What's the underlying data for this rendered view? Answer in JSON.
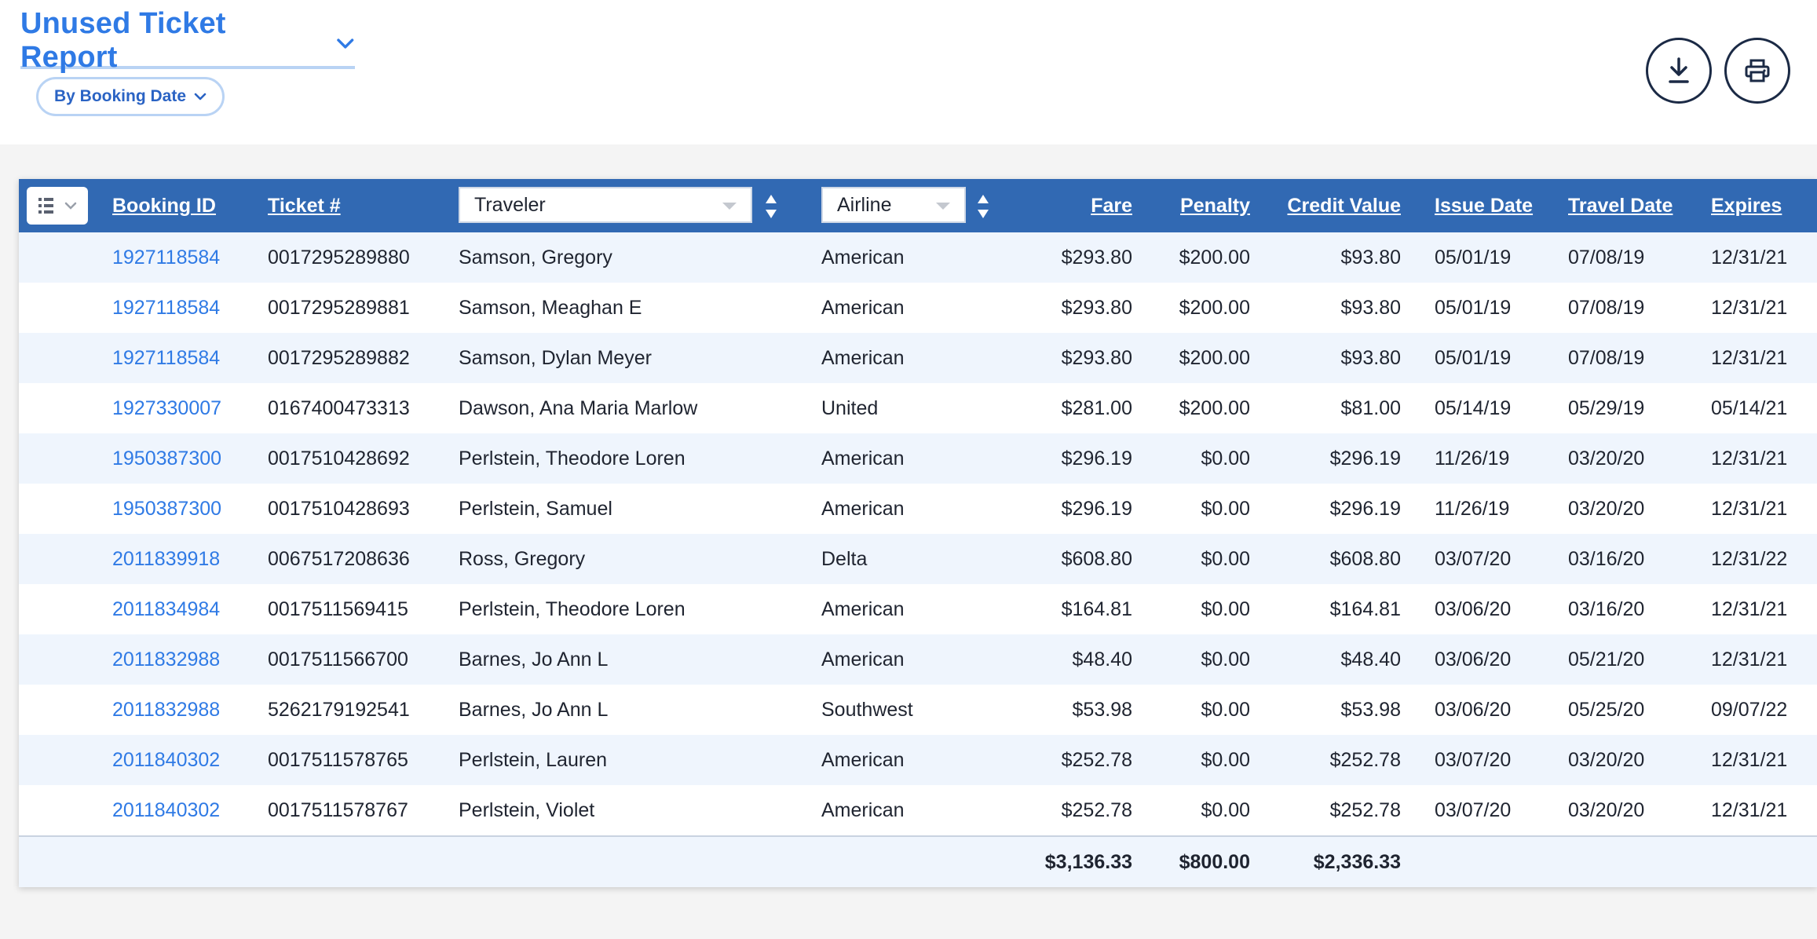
{
  "header": {
    "title": "Unused Ticket Report",
    "filter_label": "By Booking Date",
    "actions": [
      {
        "name": "download-button",
        "icon": "download-icon"
      },
      {
        "name": "print-button",
        "icon": "print-icon"
      }
    ]
  },
  "table": {
    "columns": {
      "booking_id": "Booking ID",
      "ticket": "Ticket #",
      "traveler": "Traveler",
      "airline": "Airline",
      "fare": "Fare",
      "penalty": "Penalty",
      "credit_value": "Credit Value",
      "issue_date": "Issue Date",
      "travel_date": "Travel Date",
      "expires": "Expires"
    },
    "rows": [
      {
        "booking_id": "1927118584",
        "ticket": "0017295289880",
        "traveler": "Samson, Gregory",
        "airline": "American",
        "fare": "$293.80",
        "penalty": "$200.00",
        "credit_value": "$93.80",
        "issue_date": "05/01/19",
        "travel_date": "07/08/19",
        "expires": "12/31/21"
      },
      {
        "booking_id": "1927118584",
        "ticket": "0017295289881",
        "traveler": "Samson, Meaghan E",
        "airline": "American",
        "fare": "$293.80",
        "penalty": "$200.00",
        "credit_value": "$93.80",
        "issue_date": "05/01/19",
        "travel_date": "07/08/19",
        "expires": "12/31/21"
      },
      {
        "booking_id": "1927118584",
        "ticket": "0017295289882",
        "traveler": "Samson, Dylan Meyer",
        "airline": "American",
        "fare": "$293.80",
        "penalty": "$200.00",
        "credit_value": "$93.80",
        "issue_date": "05/01/19",
        "travel_date": "07/08/19",
        "expires": "12/31/21"
      },
      {
        "booking_id": "1927330007",
        "ticket": "0167400473313",
        "traveler": "Dawson, Ana Maria Marlow",
        "airline": "United",
        "fare": "$281.00",
        "penalty": "$200.00",
        "credit_value": "$81.00",
        "issue_date": "05/14/19",
        "travel_date": "05/29/19",
        "expires": "05/14/21"
      },
      {
        "booking_id": "1950387300",
        "ticket": "0017510428692",
        "traveler": "Perlstein, Theodore Loren",
        "airline": "American",
        "fare": "$296.19",
        "penalty": "$0.00",
        "credit_value": "$296.19",
        "issue_date": "11/26/19",
        "travel_date": "03/20/20",
        "expires": "12/31/21"
      },
      {
        "booking_id": "1950387300",
        "ticket": "0017510428693",
        "traveler": "Perlstein, Samuel",
        "airline": "American",
        "fare": "$296.19",
        "penalty": "$0.00",
        "credit_value": "$296.19",
        "issue_date": "11/26/19",
        "travel_date": "03/20/20",
        "expires": "12/31/21"
      },
      {
        "booking_id": "2011839918",
        "ticket": "0067517208636",
        "traveler": "Ross, Gregory",
        "airline": "Delta",
        "fare": "$608.80",
        "penalty": "$0.00",
        "credit_value": "$608.80",
        "issue_date": "03/07/20",
        "travel_date": "03/16/20",
        "expires": "12/31/22"
      },
      {
        "booking_id": "2011834984",
        "ticket": "0017511569415",
        "traveler": "Perlstein, Theodore Loren",
        "airline": "American",
        "fare": "$164.81",
        "penalty": "$0.00",
        "credit_value": "$164.81",
        "issue_date": "03/06/20",
        "travel_date": "03/16/20",
        "expires": "12/31/21"
      },
      {
        "booking_id": "2011832988",
        "ticket": "0017511566700",
        "traveler": "Barnes, Jo Ann L",
        "airline": "American",
        "fare": "$48.40",
        "penalty": "$0.00",
        "credit_value": "$48.40",
        "issue_date": "03/06/20",
        "travel_date": "05/21/20",
        "expires": "12/31/21"
      },
      {
        "booking_id": "2011832988",
        "ticket": "5262179192541",
        "traveler": "Barnes, Jo Ann L",
        "airline": "Southwest",
        "fare": "$53.98",
        "penalty": "$0.00",
        "credit_value": "$53.98",
        "issue_date": "03/06/20",
        "travel_date": "05/25/20",
        "expires": "09/07/22"
      },
      {
        "booking_id": "2011840302",
        "ticket": "0017511578765",
        "traveler": "Perlstein, Lauren",
        "airline": "American",
        "fare": "$252.78",
        "penalty": "$0.00",
        "credit_value": "$252.78",
        "issue_date": "03/07/20",
        "travel_date": "03/20/20",
        "expires": "12/31/21"
      },
      {
        "booking_id": "2011840302",
        "ticket": "0017511578767",
        "traveler": "Perlstein, Violet",
        "airline": "American",
        "fare": "$252.78",
        "penalty": "$0.00",
        "credit_value": "$252.78",
        "issue_date": "03/07/20",
        "travel_date": "03/20/20",
        "expires": "12/31/21"
      }
    ],
    "totals": {
      "fare": "$3,136.33",
      "penalty": "$800.00",
      "credit_value": "$2,336.33"
    }
  },
  "colors": {
    "accent": "#2f7ae5",
    "header_bg": "#3169b3",
    "row_alt": "#eff5fd"
  }
}
